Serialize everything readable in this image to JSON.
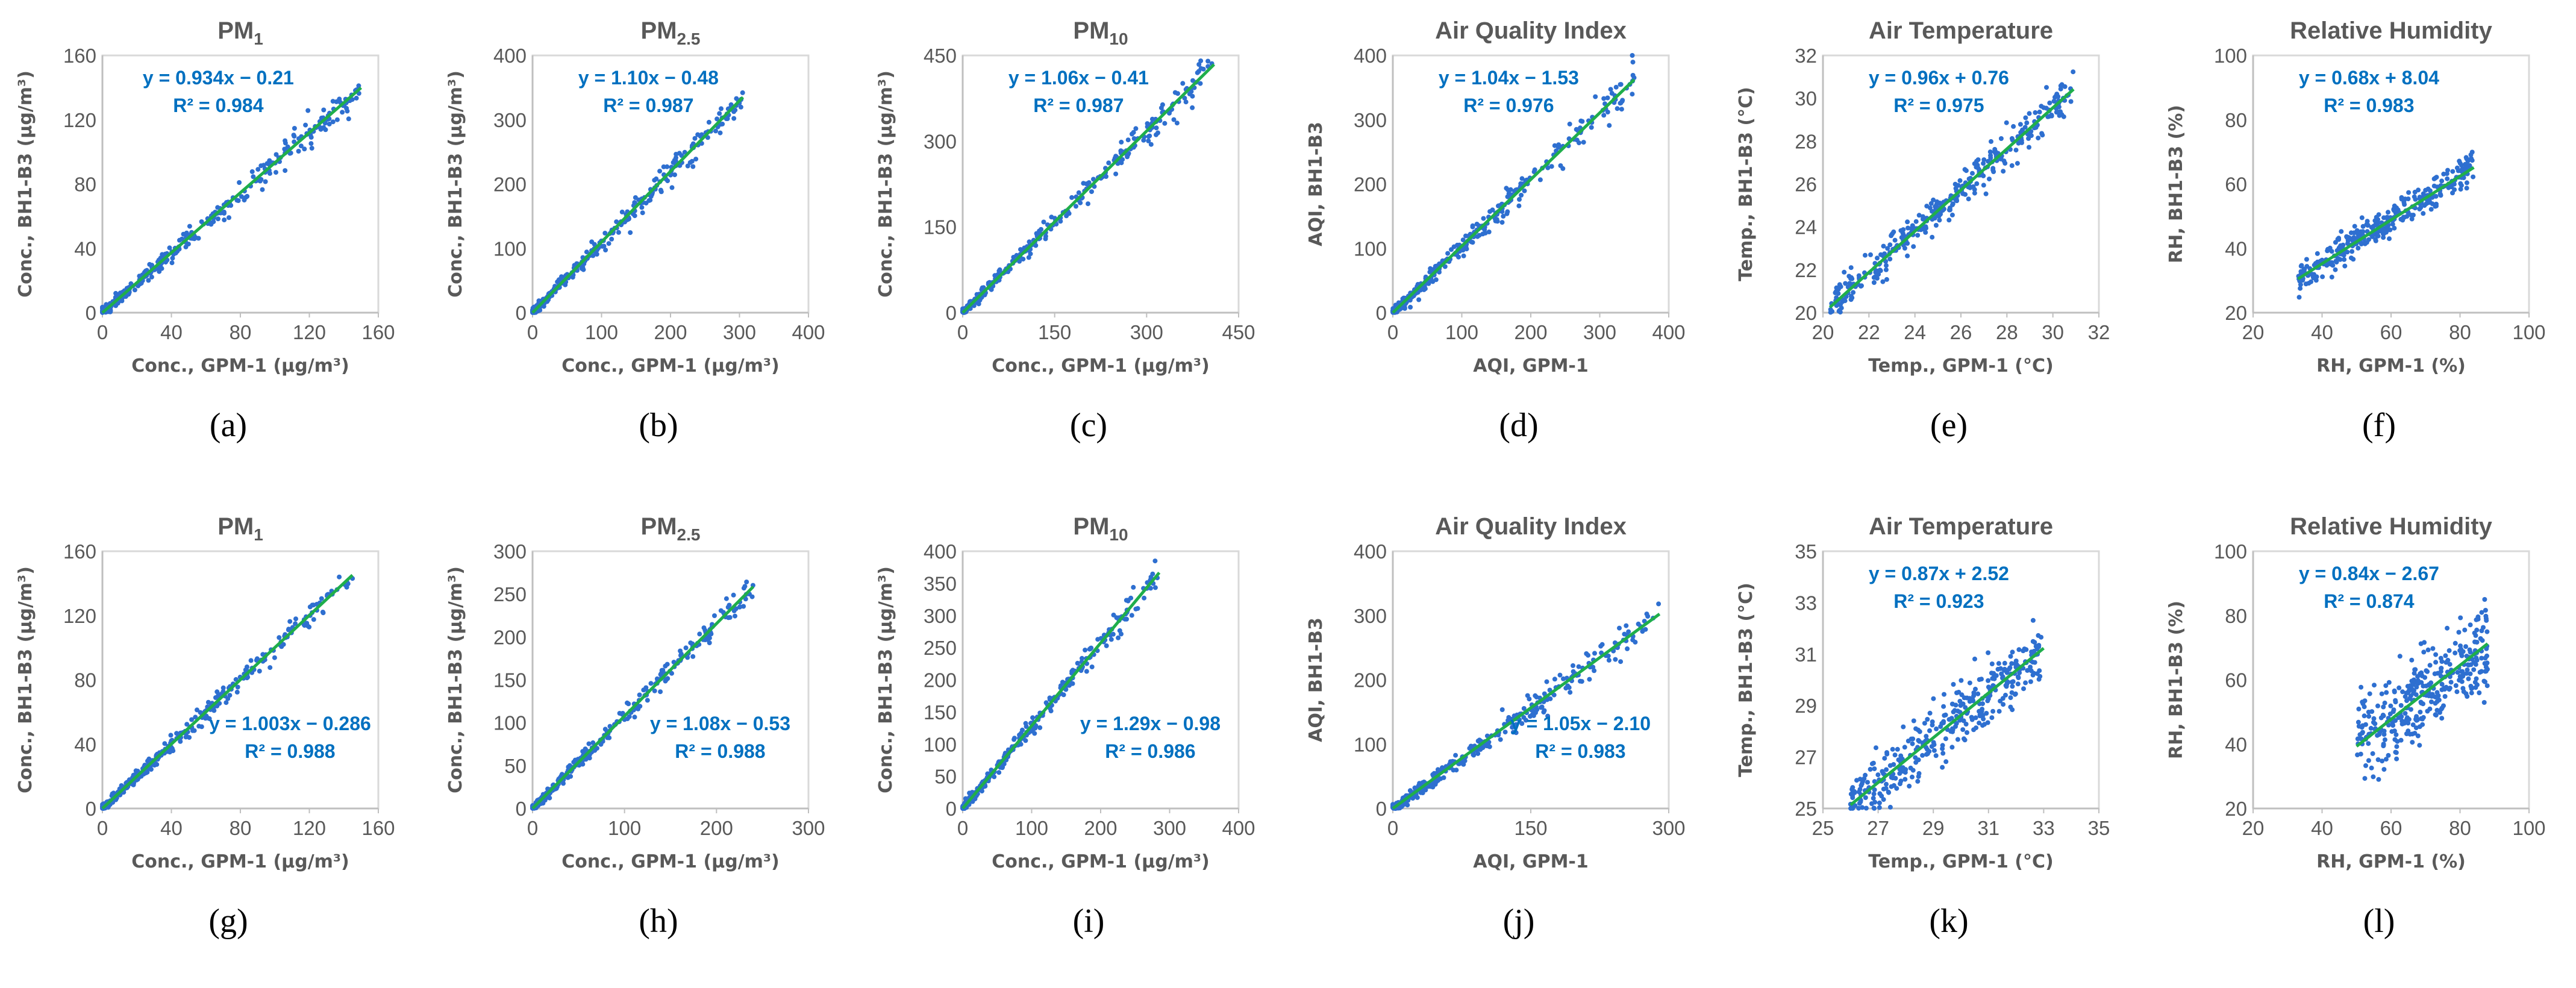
{
  "chart_data": [
    {
      "id": "a",
      "type": "scatter",
      "panel_label": "(a)",
      "title": "PM",
      "title_sub": "1",
      "xlabel": "Conc., GPM-1 (µg/m³)",
      "ylabel": "Conc., BH1-B3 (µg/m³)",
      "xlim": [
        0,
        160
      ],
      "ylim": [
        0,
        160
      ],
      "xticks": [
        0,
        40,
        80,
        120,
        160
      ],
      "yticks": [
        0,
        40,
        80,
        120,
        160
      ],
      "fit": {
        "slope": 0.934,
        "intercept": -0.21,
        "r2": 0.984,
        "equation": "y = 0.934x − 0.21",
        "r2_label": "R² = 0.984"
      },
      "data_x_range": [
        0,
        150
      ],
      "equation_position": "top-left"
    },
    {
      "id": "b",
      "type": "scatter",
      "panel_label": "(b)",
      "title": "PM",
      "title_sub": "2.5",
      "xlabel": "Conc., GPM-1 (µg/m³)",
      "ylabel": "Conc., BH1-B3 (µg/m³)",
      "xlim": [
        0,
        400
      ],
      "ylim": [
        0,
        400
      ],
      "xticks": [
        0,
        100,
        200,
        300,
        400
      ],
      "yticks": [
        0,
        100,
        200,
        300,
        400
      ],
      "fit": {
        "slope": 1.1,
        "intercept": -0.48,
        "r2": 0.987,
        "equation": "y = 1.10x − 0.48",
        "r2_label": "R² = 0.987"
      },
      "data_x_range": [
        0,
        305
      ],
      "equation_position": "top-left"
    },
    {
      "id": "c",
      "type": "scatter",
      "panel_label": "(c)",
      "title": "PM",
      "title_sub": "10",
      "xlabel": "Conc., GPM-1 (µg/m³)",
      "ylabel": "Conc., BH1-B3 (µg/m³)",
      "xlim": [
        0,
        450
      ],
      "ylim": [
        0,
        450
      ],
      "xticks": [
        0,
        150,
        300,
        450
      ],
      "yticks": [
        0,
        150,
        300,
        450
      ],
      "fit": {
        "slope": 1.06,
        "intercept": -0.41,
        "r2": 0.987,
        "equation": "y = 1.06x − 0.41",
        "r2_label": "R² = 0.987"
      },
      "data_x_range": [
        0,
        410
      ],
      "equation_position": "top-left"
    },
    {
      "id": "d",
      "type": "scatter",
      "panel_label": "(d)",
      "title": "Air Quality Index",
      "title_sub": "",
      "xlabel": "AQI, GPM-1",
      "ylabel": "AQI, BH1-B3",
      "xlim": [
        0,
        400
      ],
      "ylim": [
        0,
        400
      ],
      "xticks": [
        0,
        100,
        200,
        300,
        400
      ],
      "yticks": [
        0,
        100,
        200,
        300,
        400
      ],
      "fit": {
        "slope": 1.04,
        "intercept": -1.53,
        "r2": 0.976,
        "equation": "y = 1.04x − 1.53",
        "r2_label": "R² = 0.976"
      },
      "data_x_range": [
        0,
        350
      ],
      "equation_position": "top-left"
    },
    {
      "id": "e",
      "type": "scatter",
      "panel_label": "(e)",
      "title": "Air Temperature",
      "title_sub": "",
      "xlabel": "Temp., GPM-1 (°C)",
      "ylabel": "Temp., BH1-B3 (°C)",
      "xlim": [
        20,
        32
      ],
      "ylim": [
        20,
        32
      ],
      "xticks": [
        20,
        22,
        24,
        26,
        28,
        30,
        32
      ],
      "yticks": [
        20,
        22,
        24,
        26,
        28,
        30,
        32
      ],
      "fit": {
        "slope": 0.96,
        "intercept": 0.76,
        "r2": 0.975,
        "equation": "y = 0.96x + 0.76",
        "r2_label": "R² = 0.975"
      },
      "data_x_range": [
        20.3,
        30.9
      ],
      "equation_position": "top-left"
    },
    {
      "id": "f",
      "type": "scatter",
      "panel_label": "(f)",
      "title": "Relative Humidity",
      "title_sub": "",
      "xlabel": "RH, GPM-1 (%)",
      "ylabel": "RH, BH1-B3 (%)",
      "xlim": [
        20,
        100
      ],
      "ylim": [
        20,
        100
      ],
      "xticks": [
        20,
        40,
        60,
        80,
        100
      ],
      "yticks": [
        20,
        40,
        60,
        80,
        100
      ],
      "fit": {
        "slope": 0.68,
        "intercept": 8.04,
        "r2": 0.983,
        "equation": "y = 0.68x + 8.04",
        "r2_label": "R² = 0.983"
      },
      "data_x_range": [
        33,
        84
      ],
      "equation_position": "top-left"
    },
    {
      "id": "g",
      "type": "scatter",
      "panel_label": "(g)",
      "title": "PM",
      "title_sub": "1",
      "xlabel": "Conc., GPM-1 (µg/m³)",
      "ylabel": "Conc., BH1-B3 (µg/m³)",
      "xlim": [
        0,
        160
      ],
      "ylim": [
        0,
        160
      ],
      "xticks": [
        0,
        40,
        80,
        120,
        160
      ],
      "yticks": [
        0,
        40,
        80,
        120,
        160
      ],
      "fit": {
        "slope": 1.003,
        "intercept": -0.286,
        "r2": 0.988,
        "equation": "y = 1.003x − 0.286",
        "r2_label": "R² = 0.988"
      },
      "data_x_range": [
        0,
        145
      ],
      "equation_position": "bottom-right"
    },
    {
      "id": "h",
      "type": "scatter",
      "panel_label": "(h)",
      "title": "PM",
      "title_sub": "2.5",
      "xlabel": "Conc., GPM-1 (µg/m³)",
      "ylabel": "Conc., BH1-B3 (µg/m³)",
      "xlim": [
        0,
        300
      ],
      "ylim": [
        0,
        300
      ],
      "xticks": [
        0,
        100,
        200,
        300
      ],
      "yticks": [
        0,
        50,
        100,
        150,
        200,
        250,
        300
      ],
      "fit": {
        "slope": 1.08,
        "intercept": -0.53,
        "r2": 0.988,
        "equation": "y = 1.08x − 0.53",
        "r2_label": "R² = 0.988"
      },
      "data_x_range": [
        0,
        240
      ],
      "equation_position": "bottom-right"
    },
    {
      "id": "i",
      "type": "scatter",
      "panel_label": "(i)",
      "title": "PM",
      "title_sub": "10",
      "xlabel": "Conc., GPM-1 (µg/m³)",
      "ylabel": "Conc., BH1-B3 (µg/m³)",
      "xlim": [
        0,
        400
      ],
      "ylim": [
        0,
        400
      ],
      "xticks": [
        0,
        100,
        200,
        300,
        400
      ],
      "yticks": [
        0,
        50,
        100,
        150,
        200,
        250,
        300,
        350,
        400
      ],
      "fit": {
        "slope": 1.29,
        "intercept": -0.98,
        "r2": 0.986,
        "equation": "y = 1.29x − 0.98",
        "r2_label": "R² = 0.986"
      },
      "data_x_range": [
        0,
        285
      ],
      "equation_position": "bottom-right"
    },
    {
      "id": "j",
      "type": "scatter",
      "panel_label": "(j)",
      "title": "Air Quality Index",
      "title_sub": "",
      "xlabel": "AQI, GPM-1",
      "ylabel": "AQI, BH1-B3",
      "xlim": [
        0,
        300
      ],
      "ylim": [
        0,
        400
      ],
      "xticks": [
        0,
        150,
        300
      ],
      "yticks": [
        0,
        100,
        200,
        300,
        400
      ],
      "fit": {
        "slope": 1.05,
        "intercept": -2.1,
        "r2": 0.983,
        "equation": "y = 1.05x − 2.10",
        "r2_label": "R² = 0.983"
      },
      "data_x_range": [
        0,
        290
      ],
      "equation_position": "bottom-right"
    },
    {
      "id": "k",
      "type": "scatter",
      "panel_label": "(k)",
      "title": "Air Temperature",
      "title_sub": "",
      "xlabel": "Temp., GPM-1 (°C)",
      "ylabel": "Temp., BH1-B3 (°C)",
      "xlim": [
        25,
        35
      ],
      "ylim": [
        25,
        35
      ],
      "xticks": [
        25,
        27,
        29,
        31,
        33,
        35
      ],
      "yticks": [
        25,
        27,
        29,
        31,
        33,
        35
      ],
      "fit": {
        "slope": 0.87,
        "intercept": 2.52,
        "r2": 0.923,
        "equation": "y = 0.87x + 2.52",
        "r2_label": "R² = 0.923"
      },
      "data_x_range": [
        26,
        33
      ],
      "equation_position": "top-left"
    },
    {
      "id": "l",
      "type": "scatter",
      "panel_label": "(l)",
      "title": "Relative Humidity",
      "title_sub": "",
      "xlabel": "RH, GPM-1 (%)",
      "ylabel": "RH, BH1-B3 (%)",
      "xlim": [
        20,
        100
      ],
      "ylim": [
        20,
        100
      ],
      "xticks": [
        20,
        40,
        60,
        80,
        100
      ],
      "yticks": [
        20,
        40,
        60,
        80,
        100
      ],
      "fit": {
        "slope": 0.84,
        "intercept": -2.67,
        "r2": 0.874,
        "equation": "y = 0.84x − 2.67",
        "r2_label": "R² = 0.874"
      },
      "data_x_range": [
        50,
        88
      ],
      "equation_position": "top-left"
    }
  ],
  "colors": {
    "points": "#2e6fd0",
    "fit_line": "#1fae4b",
    "equation": "#0070c0",
    "axis_text": "#595959",
    "frame": "#d9d9d9"
  }
}
